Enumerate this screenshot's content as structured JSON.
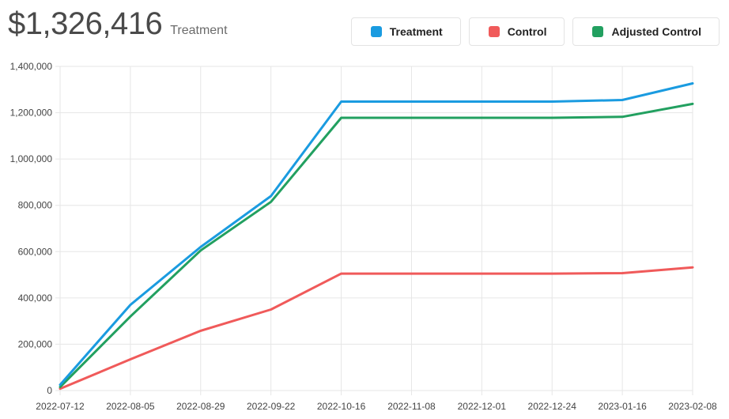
{
  "header": {
    "value": "$1,326,416",
    "label": "Treatment"
  },
  "legend": [
    {
      "label": "Treatment",
      "color": "#1a9be0"
    },
    {
      "label": "Control",
      "color": "#f05a5a"
    },
    {
      "label": "Adjusted Control",
      "color": "#22a060"
    }
  ],
  "chart_data": {
    "type": "line",
    "x": [
      "2022-07-12",
      "2022-08-05",
      "2022-08-29",
      "2022-09-22",
      "2022-10-16",
      "2022-11-08",
      "2022-12-01",
      "2022-12-24",
      "2023-01-16",
      "2023-02-08"
    ],
    "ylim": [
      0,
      1400000
    ],
    "yticks": [
      0,
      200000,
      400000,
      600000,
      800000,
      1000000,
      1200000,
      1400000
    ],
    "ytick_labels": [
      "0",
      "200,000",
      "400,000",
      "600,000",
      "800,000",
      "1,000,000",
      "1,200,000",
      "1,400,000"
    ],
    "grid": true,
    "series": [
      {
        "name": "Treatment",
        "color": "#1a9be0",
        "values": [
          25000,
          370000,
          620000,
          840000,
          1248000,
          1248000,
          1248000,
          1248000,
          1255000,
          1326416
        ]
      },
      {
        "name": "Control",
        "color": "#f05a5a",
        "values": [
          8000,
          135000,
          258000,
          350000,
          505000,
          505000,
          505000,
          505000,
          507000,
          532000
        ]
      },
      {
        "name": "Adjusted Control",
        "color": "#22a060",
        "values": [
          15000,
          320000,
          605000,
          815000,
          1178000,
          1178000,
          1178000,
          1178000,
          1182000,
          1238000
        ]
      }
    ]
  }
}
